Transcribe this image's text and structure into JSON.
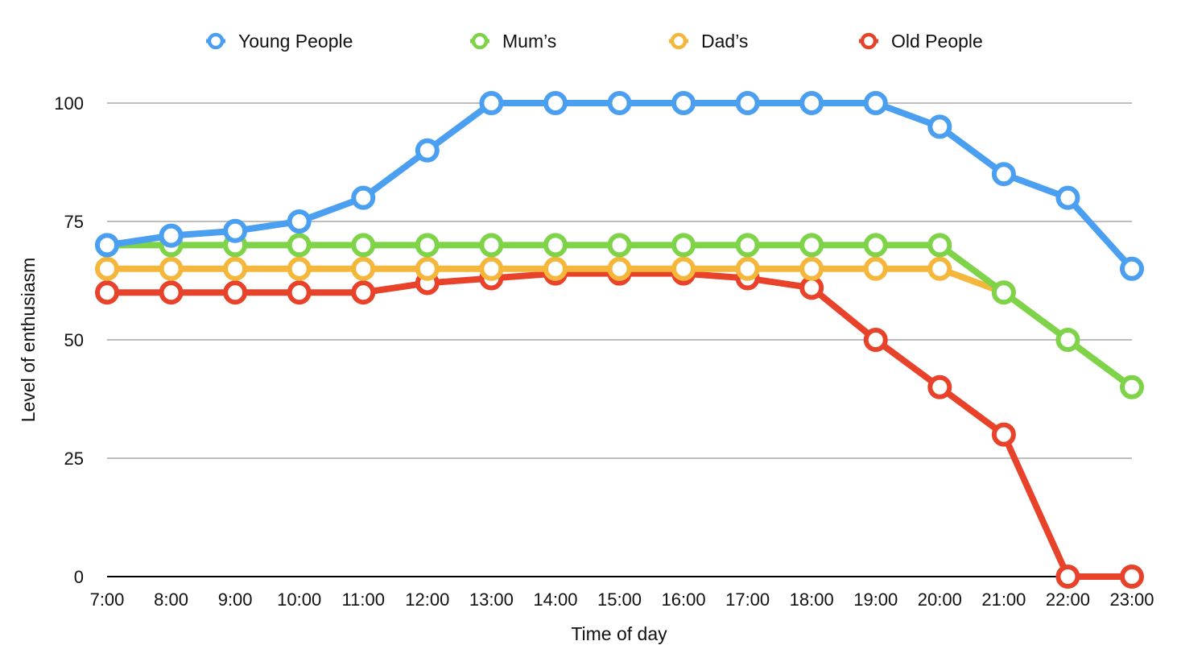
{
  "chart_data": {
    "type": "line",
    "title": "",
    "xlabel": "Time of day",
    "ylabel": "Level of enthusiasm",
    "categories": [
      "7:00",
      "8:00",
      "9:00",
      "10:00",
      "11:00",
      "12:00",
      "13:00",
      "14:00",
      "15:00",
      "16:00",
      "17:00",
      "18:00",
      "19:00",
      "20:00",
      "21:00",
      "22:00",
      "23:00"
    ],
    "ylim": [
      0,
      100
    ],
    "yticks": [
      0,
      25,
      50,
      75,
      100
    ],
    "grid": true,
    "legend_position": "top",
    "series": [
      {
        "name": "Young People",
        "color": "#4a9ff0",
        "values": [
          70,
          72,
          73,
          75,
          80,
          90,
          100,
          100,
          100,
          100,
          100,
          100,
          100,
          95,
          85,
          80,
          65
        ]
      },
      {
        "name": "Mum’s",
        "color": "#7ed348",
        "values": [
          70,
          70,
          70,
          70,
          70,
          70,
          70,
          70,
          70,
          70,
          70,
          70,
          70,
          70,
          60,
          50,
          40
        ]
      },
      {
        "name": "Dad’s",
        "color": "#f4b73c",
        "values": [
          65,
          65,
          65,
          65,
          65,
          65,
          65,
          65,
          65,
          65,
          65,
          65,
          65,
          65,
          60,
          null,
          null
        ]
      },
      {
        "name": "Old People",
        "color": "#e8432a",
        "values": [
          60,
          60,
          60,
          60,
          60,
          62,
          63,
          64,
          64,
          64,
          63,
          61,
          50,
          40,
          30,
          0,
          0
        ]
      }
    ]
  }
}
